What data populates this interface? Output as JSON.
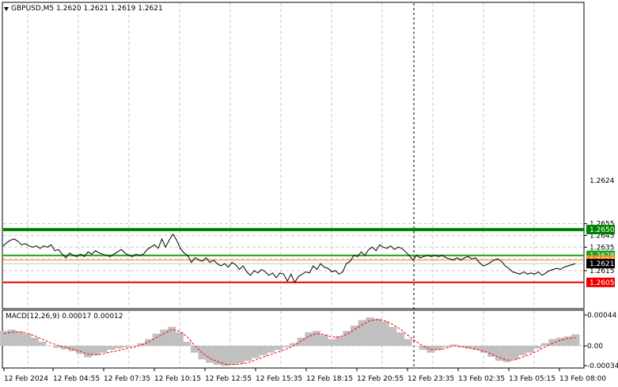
{
  "header": {
    "symbol": "GBPUSD,M5",
    "ohlc": "1.2620 1.2621 1.2619 1.2621"
  },
  "macd": {
    "label": "MACD(12,26,9) 0.00017 0.00012"
  },
  "colors": {
    "price_line": "#000000",
    "hist": "#c0c0c0",
    "signal": "#ff0000",
    "green_strong": "#008000",
    "green": "#1a9f1a",
    "orange": "#ff8c1a",
    "red": "#ee0000",
    "grid": "#c8c8c8"
  },
  "chart_data": [
    {
      "type": "line",
      "title": "GBPUSD,M5",
      "ylim": [
        1.26,
        1.266
      ],
      "y_ticks": [
        "1.2655",
        "1.2645",
        "1.2635",
        "1.2615"
      ],
      "x_ticks": [
        "12 Feb 2024",
        "12 Feb 04:55",
        "12 Feb 07:35",
        "12 Feb 10:15",
        "12 Feb 12:55",
        "12 Feb 15:35",
        "12 Feb 18:15",
        "12 Feb 20:55",
        "12 Feb 23:35",
        "13 Feb 02:35",
        "13 Feb 05:15",
        "13 Feb 08:00"
      ],
      "levels": [
        {
          "value": 1.265,
          "label": "1.2650",
          "color": "#008000"
        },
        {
          "value": 1.2628,
          "label": "1.2628",
          "color": "#1a9f1a"
        },
        {
          "value": 1.2624,
          "label": "1.2624",
          "color": "#ff8c1a"
        },
        {
          "value": 1.2621,
          "label": "1.2621",
          "color": "#000000"
        },
        {
          "value": 1.2605,
          "label": "1.2605",
          "color": "#ee0000"
        }
      ],
      "partial_label": "1.2624",
      "series": [
        {
          "values": [
            1.2636,
            1.2639,
            1.2641,
            1.2642,
            1.264,
            1.2637,
            1.2638,
            1.2636,
            1.2635,
            1.2636,
            1.2634,
            1.2636,
            1.2635,
            1.2637,
            1.2632,
            1.2633,
            1.2629,
            1.2626,
            1.263,
            1.2628,
            1.2627,
            1.2629,
            1.2627,
            1.2631,
            1.2629,
            1.2632,
            1.263,
            1.2629,
            1.2628,
            1.2627,
            1.2629,
            1.2631,
            1.2633,
            1.263,
            1.2628,
            1.2627,
            1.2629,
            1.2628,
            1.2629,
            1.2633,
            1.2635,
            1.2637,
            1.2634,
            1.2642,
            1.2635,
            1.2641,
            1.2646,
            1.2641,
            1.2634,
            1.263,
            1.2628,
            1.2622,
            1.2626,
            1.2624,
            1.2623,
            1.2626,
            1.2622,
            1.2624,
            1.2621,
            1.2619,
            1.2621,
            1.2618,
            1.2622,
            1.262,
            1.2616,
            1.2619,
            1.2614,
            1.2611,
            1.2615,
            1.2613,
            1.2616,
            1.2614,
            1.2611,
            1.2613,
            1.2609,
            1.2613,
            1.2612,
            1.2606,
            1.2612,
            1.2605,
            1.261,
            1.2612,
            1.2614,
            1.2613,
            1.2619,
            1.2616,
            1.2621,
            1.2618,
            1.2617,
            1.2614,
            1.2615,
            1.2612,
            1.2614,
            1.2621,
            1.2623,
            1.2628,
            1.2627,
            1.2631,
            1.2628,
            1.2633,
            1.2635,
            1.2632,
            1.2637,
            1.2635,
            1.2634,
            1.2636,
            1.2633,
            1.2635,
            1.2634,
            1.2631,
            1.2628,
            1.2624,
            1.2628,
            1.2626,
            1.2627,
            1.2628,
            1.2627,
            1.2628,
            1.2627,
            1.2628,
            1.2626,
            1.2625,
            1.2624,
            1.2626,
            1.2624,
            1.2626,
            1.2627,
            1.2625,
            1.2626,
            1.2622,
            1.2619,
            1.262,
            1.2622,
            1.2624,
            1.2625,
            1.2623,
            1.2619,
            1.2617,
            1.2614,
            1.2613,
            1.2612,
            1.2614,
            1.2612,
            1.2613,
            1.2612,
            1.2614,
            1.2611,
            1.2613,
            1.2615,
            1.2616,
            1.2617,
            1.2616,
            1.2618,
            1.2619,
            1.262,
            1.2621
          ]
        }
      ]
    },
    {
      "type": "area",
      "title": "MACD(12,26,9) 0.00017 0.00012",
      "ylim": [
        -0.00034,
        0.00044
      ],
      "y_ticks": [
        "0.00044",
        "0.00",
        "-0.00034"
      ],
      "series": [
        {
          "name": "MACD",
          "values": [
            0.00022,
            0.00024,
            0.00021,
            0.00018,
            0.00012,
            6e-05,
            0.0,
            -3e-05,
            -5e-05,
            -8e-05,
            -0.00012,
            -0.00017,
            -0.00014,
            -0.0001,
            -6e-05,
            -4e-05,
            -2e-05,
            0.0,
            4e-05,
            0.0001,
            0.00018,
            0.00024,
            0.00028,
            0.0002,
            6e-05,
            -0.0001,
            -0.0002,
            -0.00025,
            -0.00028,
            -0.0003,
            -0.00028,
            -0.00026,
            -0.00022,
            -0.00018,
            -0.00014,
            -0.0001,
            -6e-05,
            -2e-05,
            4e-05,
            0.00012,
            0.0002,
            0.00022,
            0.00016,
            0.0001,
            0.00014,
            0.00022,
            0.0003,
            0.00038,
            0.00042,
            0.0004,
            0.00036,
            0.00028,
            0.0002,
            0.0001,
            0.0,
            -6e-05,
            -0.0001,
            -6e-05,
            -2e-05,
            2e-05,
            -2e-05,
            -4e-05,
            -6e-05,
            -0.0001,
            -0.00016,
            -0.00022,
            -0.00024,
            -0.0002,
            -0.00014,
            -0.0001,
            -4e-05,
            4e-05,
            0.0001,
            0.00012,
            0.00014,
            0.00017
          ]
        },
        {
          "name": "Signal",
          "values": [
            0.00018,
            0.0002,
            0.00021,
            0.00019,
            0.00015,
            0.0001,
            5e-05,
            1e-05,
            -2e-05,
            -5e-05,
            -8e-05,
            -0.00012,
            -0.00013,
            -0.00012,
            -9e-05,
            -7e-05,
            -4e-05,
            -2e-05,
            1e-05,
            6e-05,
            0.00012,
            0.00018,
            0.00024,
            0.00022,
            0.00014,
            1e-05,
            -0.0001,
            -0.00018,
            -0.00023,
            -0.00027,
            -0.00028,
            -0.00027,
            -0.00025,
            -0.00021,
            -0.00017,
            -0.00013,
            -9e-05,
            -5e-05,
            0.0,
            7e-05,
            0.00014,
            0.00018,
            0.00017,
            0.00013,
            0.00013,
            0.00017,
            0.00024,
            0.00031,
            0.00037,
            0.00039,
            0.00037,
            0.00032,
            0.00025,
            0.00016,
            7e-05,
            0.0,
            -5e-05,
            -6e-05,
            -4e-05,
            0.0,
            -1e-05,
            -3e-05,
            -5e-05,
            -8e-05,
            -0.00012,
            -0.00017,
            -0.00021,
            -0.00021,
            -0.00017,
            -0.00013,
            -8e-05,
            -2e-05,
            4e-05,
            8e-05,
            0.00011,
            0.00012
          ]
        }
      ]
    }
  ]
}
